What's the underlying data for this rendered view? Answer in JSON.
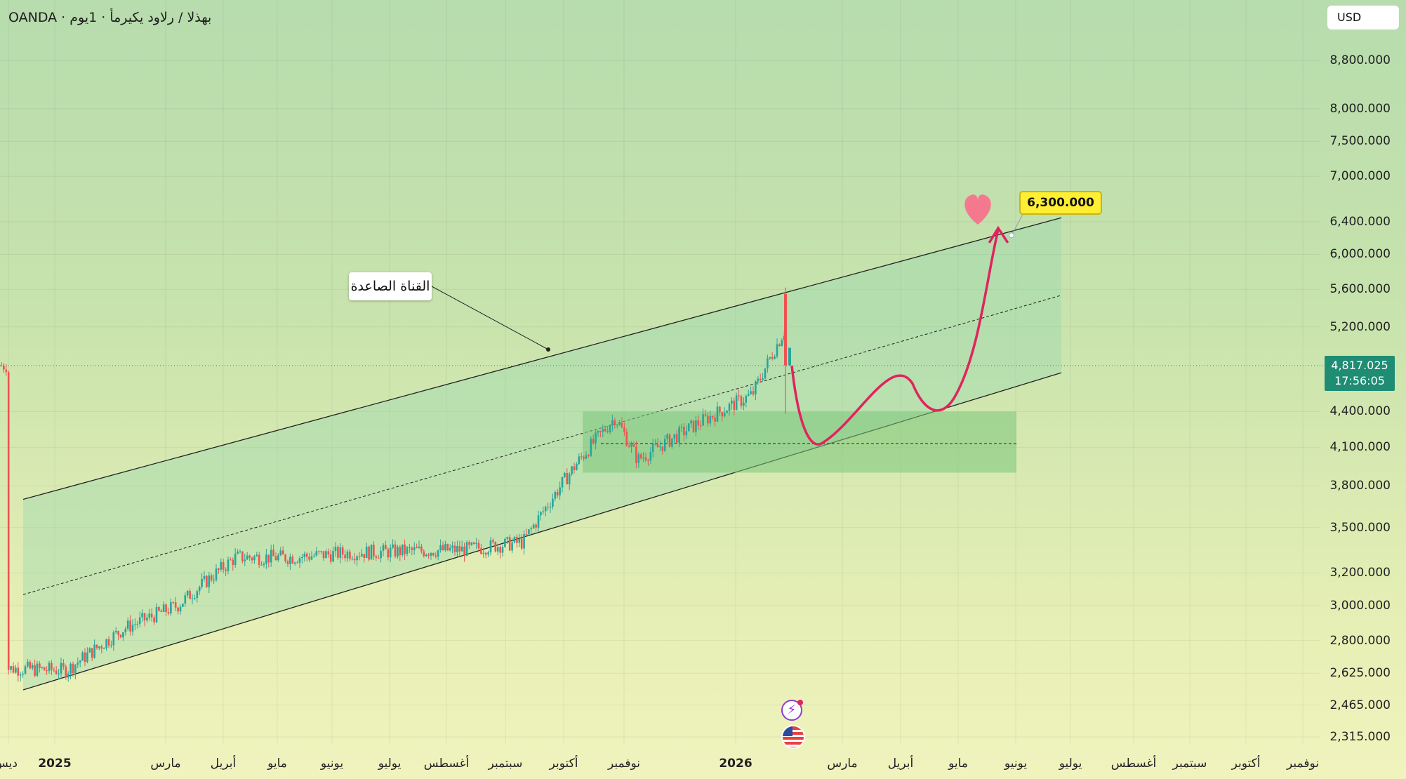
{
  "header": {
    "symbol_line": "OANDA · بهذلا / رلاود يكيرمأ · 1يوم",
    "currency_button": "USD"
  },
  "price_axis": {
    "ticks": [
      "8,800.000",
      "8,000.000",
      "7,500.000",
      "7,000.000",
      "6,400.000",
      "6,000.000",
      "5,600.000",
      "5,200.000",
      "4,400.000",
      "4,100.000",
      "3,800.000",
      "3,500.000",
      "3,200.000",
      "3,000.000",
      "2,800.000",
      "2,625.000",
      "2,465.000",
      "2,315.000"
    ],
    "tick_values": [
      8800,
      8000,
      7500,
      7000,
      6400,
      6000,
      5600,
      5200,
      4400,
      4100,
      3800,
      3500,
      3200,
      3000,
      2800,
      2625,
      2465,
      2315
    ],
    "scale": "log",
    "current_price": "4,817.025",
    "countdown": "17:56:05"
  },
  "time_axis": {
    "labels": [
      {
        "text": "ديس",
        "bold": false
      },
      {
        "text": "2025",
        "bold": true
      },
      {
        "text": "مارس",
        "bold": false
      },
      {
        "text": "أبريل",
        "bold": false
      },
      {
        "text": "مايو",
        "bold": false
      },
      {
        "text": "يونيو",
        "bold": false
      },
      {
        "text": "يوليو",
        "bold": false
      },
      {
        "text": "أغسطس",
        "bold": false
      },
      {
        "text": "سبتمبر",
        "bold": false
      },
      {
        "text": "أكتوبر",
        "bold": false
      },
      {
        "text": "نوفمبر",
        "bold": false
      },
      {
        "text": "2026",
        "bold": true
      },
      {
        "text": "مارس",
        "bold": false
      },
      {
        "text": "أبريل",
        "bold": false
      },
      {
        "text": "مايو",
        "bold": false
      },
      {
        "text": "يونيو",
        "bold": false
      },
      {
        "text": "يوليو",
        "bold": false
      },
      {
        "text": "أغسطس",
        "bold": false
      },
      {
        "text": "سبتمبر",
        "bold": false
      },
      {
        "text": "أكتوبر",
        "bold": false
      },
      {
        "text": "نوفمبر",
        "bold": false
      }
    ]
  },
  "annotations": {
    "channel_label": "القناة الصاعدة",
    "target_label": "6,300.000"
  },
  "colors": {
    "up": "#26a69a",
    "down": "#ef5350",
    "path": "#e0245e",
    "channel_fill": "#8fd3b0",
    "zone_fill": "#7cc77a",
    "price_tag": "#1f8c74",
    "target": "#ffee33",
    "heart": "#f4798f"
  },
  "chart_data": {
    "type": "candlestick",
    "scale": "log",
    "ylim": [
      2250,
      9300
    ],
    "series": [
      {
        "date": "2024-12-01",
        "close": 2650
      },
      {
        "date": "2025-01-01",
        "close": 2640
      },
      {
        "date": "2025-02-01",
        "close": 2870
      },
      {
        "date": "2025-03-01",
        "close": 3000
      },
      {
        "date": "2025-04-01",
        "close": 3300
      },
      {
        "date": "2025-05-01",
        "close": 3300
      },
      {
        "date": "2025-06-01",
        "close": 3330
      },
      {
        "date": "2025-07-01",
        "close": 3340
      },
      {
        "date": "2025-08-01",
        "close": 3350
      },
      {
        "date": "2025-09-01",
        "close": 3400
      },
      {
        "date": "2025-10-01",
        "close": 4000
      },
      {
        "date": "2025-10-20",
        "close": 4350
      },
      {
        "date": "2025-11-01",
        "close": 4000
      },
      {
        "date": "2025-12-01",
        "close": 4280
      },
      {
        "date": "2026-01-01",
        "close": 4550
      },
      {
        "date": "2026-01-29",
        "close": 5550
      },
      {
        "date": "2026-02-02",
        "close": 4817.025
      }
    ],
    "projection": {
      "target": 6300,
      "path": [
        4817,
        4150,
        4700,
        4380,
        6300
      ]
    },
    "support_zone": [
      3900,
      4400
    ],
    "support_level": 4130
  }
}
